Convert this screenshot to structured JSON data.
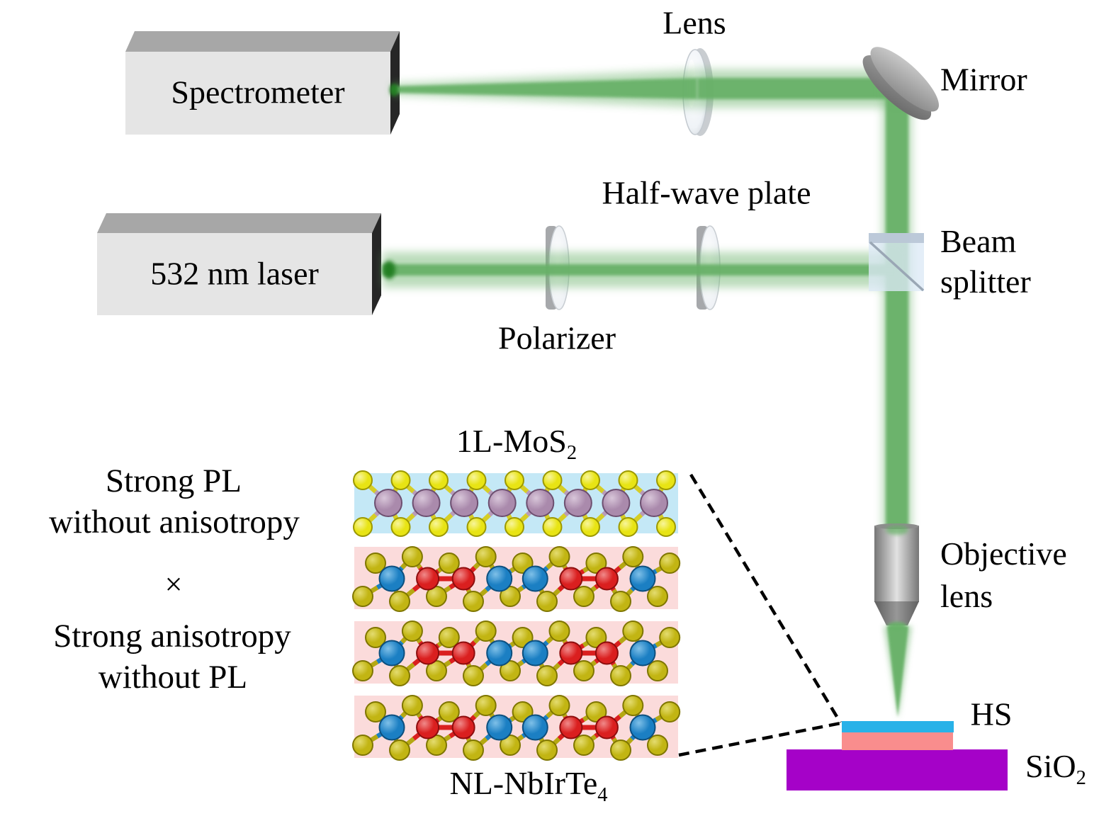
{
  "labels": {
    "spectrometer": "Spectrometer",
    "laser": "532 nm laser",
    "lens": "Lens",
    "mirror": "Mirror",
    "half_wave_plate": "Half-wave plate",
    "polarizer": "Polarizer",
    "beam_splitter_line1": "Beam",
    "beam_splitter_line2": "splitter",
    "objective_line1": "Objective",
    "objective_line2": "lens",
    "hs": "HS",
    "sio2_base": "SiO",
    "sio2_sub": "2",
    "mos2_base": "1L-MoS",
    "mos2_sub": "2",
    "nbirte4_base": "NL-NbIrTe",
    "nbirte4_sub": "4",
    "annotation_line1": "Strong PL",
    "annotation_line2": "without anisotropy",
    "annotation_times": "×",
    "annotation_line3": "Strong anisotropy",
    "annotation_line4": "without PL"
  },
  "colors": {
    "beam": "#68b168",
    "beam_exit": "#1f7a1f",
    "box_front": "#e5e5e5",
    "box_top": "#a7a7a7",
    "box_side": "#262626",
    "disc_side": "#a6a8ab",
    "disc_face": "#eef1f5",
    "disc_edge": "#c9ced3",
    "lens_face": "#eff3f7",
    "lens_edge": "#c3c9cf",
    "lens_back": "#c9cdd1",
    "mirror_face_light": "#d2d2d2",
    "mirror_face_dark": "#8f8f8f",
    "mirror_rim_light": "#a2a2a2",
    "mirror_rim_dark": "#6e6e6e",
    "bs_body": "#dde9f6",
    "bs_top": "#b9c6d6",
    "bs_diag": "#9aa7b5",
    "objective_dark": "#767676",
    "objective_light": "#e2e2e2",
    "cone_dark": "#5f5f5f",
    "cone_light": "#989898",
    "hs_blue": "#29b2e8",
    "hs_pink": "#f98d8d",
    "sio2_purple": "#a502c8",
    "mos2_bg": "#c4e8f6",
    "nbirte4_bg": "#fbdbdb",
    "s_atom": "#e8e414",
    "s_stroke": "#9c9800",
    "s_light": "#f8f59c",
    "mo_atom": "#aa8aac",
    "mo_stroke": "#6d4f70",
    "mo_light": "#d8c6d9",
    "te_atom": "#c2b513",
    "te_stroke": "#7f7600",
    "te_light": "#e4dc70",
    "nb_atom": "#1b7fc3",
    "nb_stroke": "#0d4f7e",
    "nb_light": "#7fc0e8",
    "ir_atom": "#da1f1f",
    "ir_stroke": "#8c0d0d",
    "ir_light": "#f08a8a",
    "bond_yellow": "#d6ce25",
    "bond_olive": "#b5a813",
    "bond_mo": "#b89cba",
    "dash": "#000000",
    "text": "#000000"
  },
  "crystal": {
    "mos2": {
      "metal_count": 8,
      "chalcogen_count": 9
    },
    "nbirte4": {
      "layer_count": 3,
      "metal_count": 8,
      "chalcogen_count": 9,
      "pattern": [
        "nb",
        "ir",
        "ir",
        "nb",
        "nb",
        "ir",
        "ir",
        "nb"
      ]
    }
  }
}
